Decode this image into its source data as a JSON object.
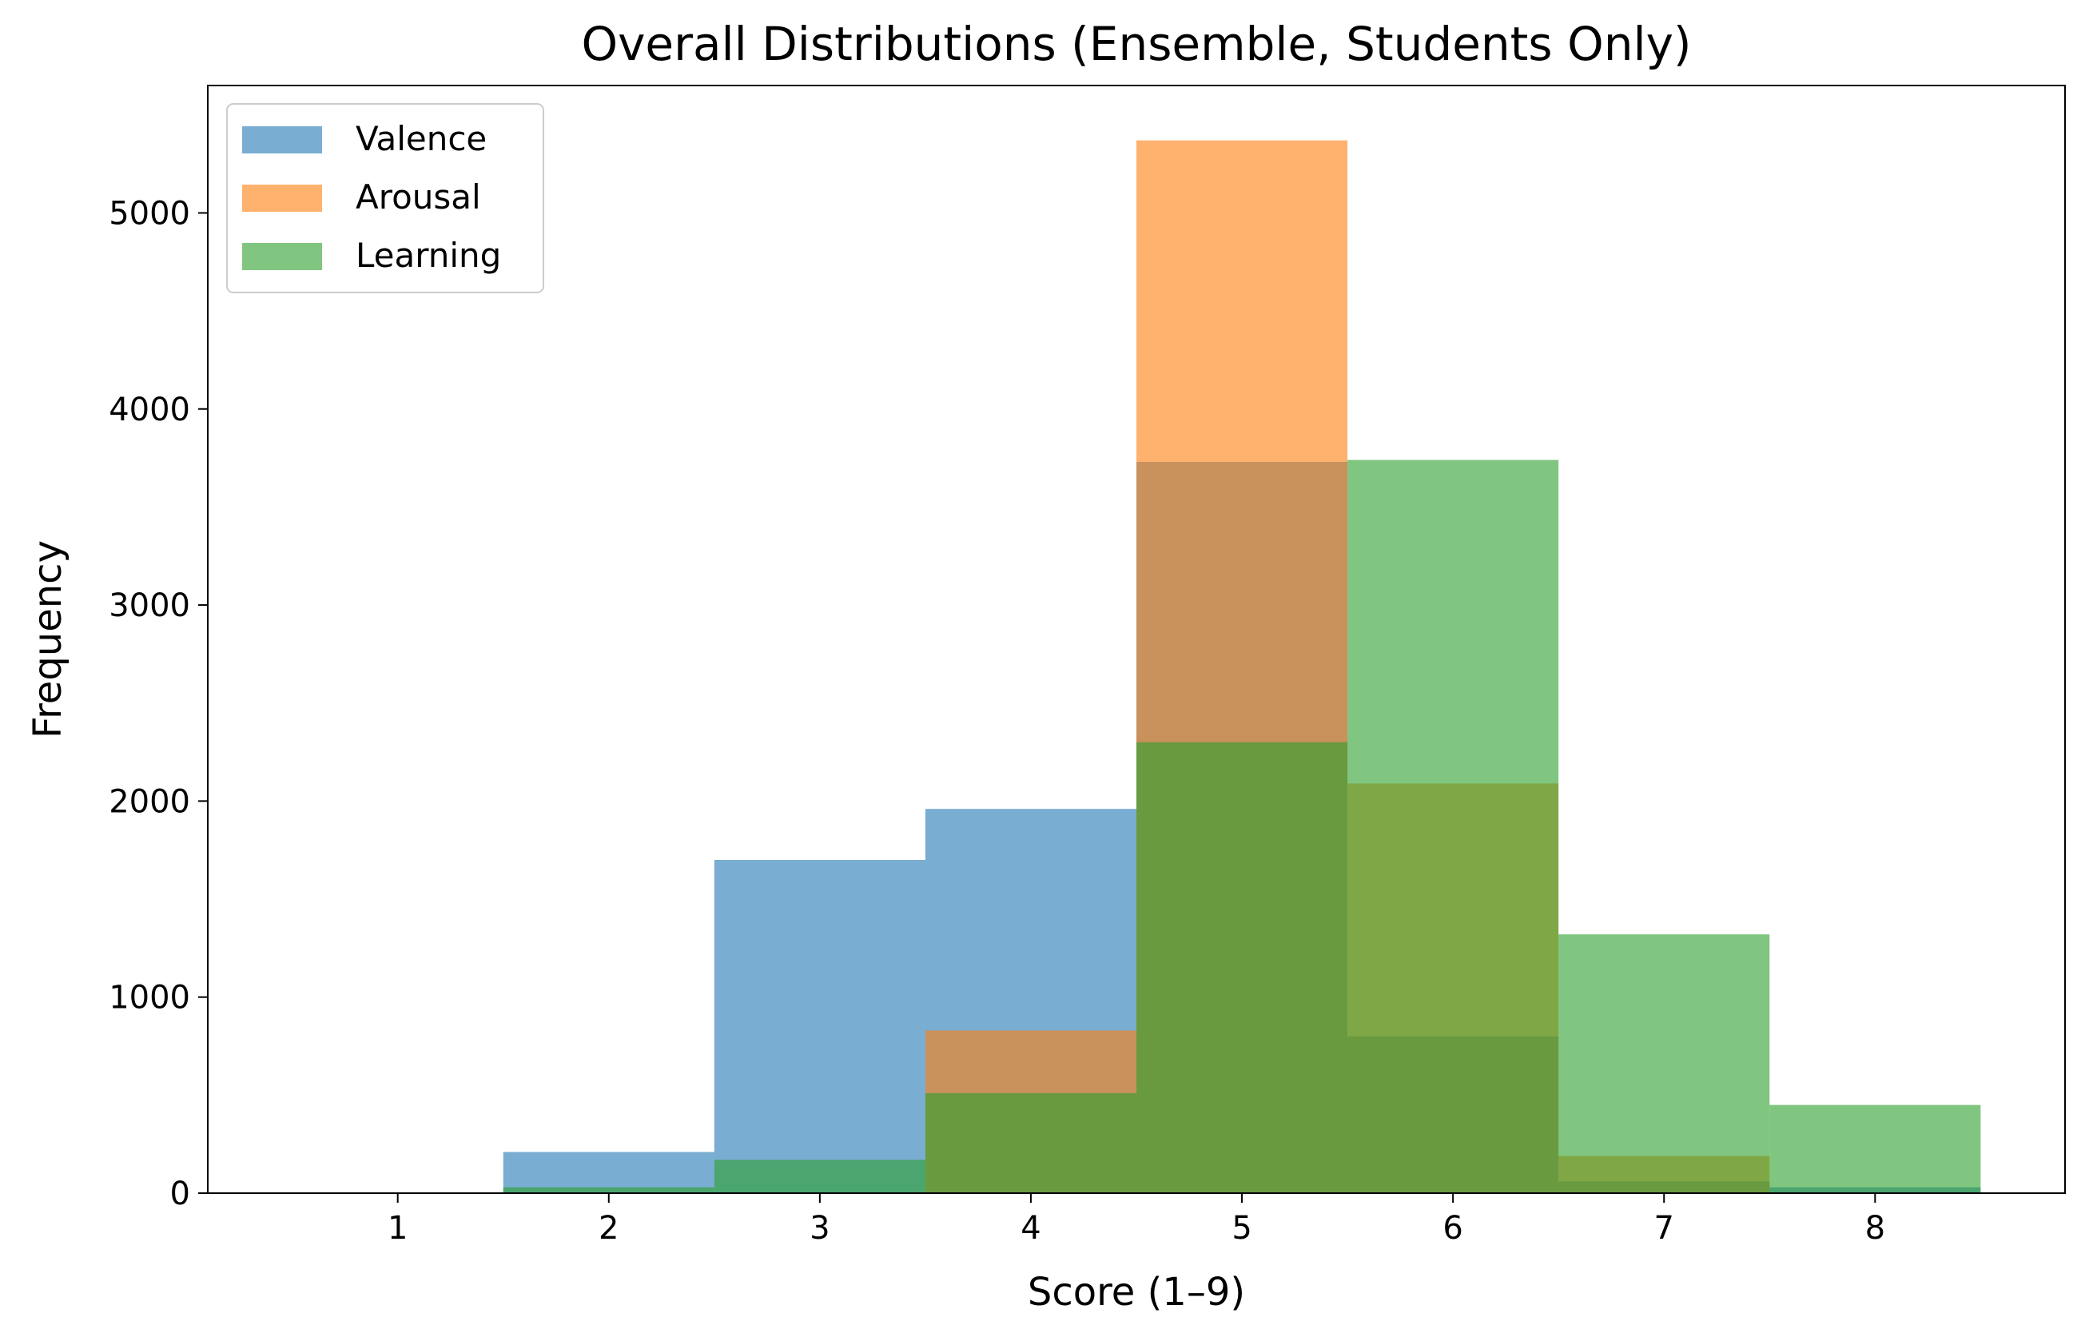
{
  "chart_data": {
    "type": "bar",
    "title": "Overall Distributions (Ensemble, Students Only)",
    "xlabel": "Score (1–9)",
    "ylabel": "Frequency",
    "xlim": [
      0.1,
      8.9
    ],
    "ylim": [
      0,
      5650
    ],
    "xticks": [
      1,
      2,
      3,
      4,
      5,
      6,
      7,
      8
    ],
    "yticks": [
      0,
      1000,
      2000,
      3000,
      4000,
      5000
    ],
    "bin_edges": [
      1.5,
      2.5,
      3.5,
      4.5,
      5.5,
      6.5,
      7.5,
      8.5
    ],
    "bin_centers": [
      2,
      3,
      4,
      5,
      6,
      7,
      8
    ],
    "grid": false,
    "legend_position": "upper left",
    "bar_alpha": 0.6,
    "series": [
      {
        "name": "Valence",
        "color": "#1f77b4",
        "values": [
          210,
          1700,
          1960,
          3730,
          800,
          60,
          30
        ]
      },
      {
        "name": "Arousal",
        "color": "#ff7f0e",
        "values": [
          0,
          0,
          830,
          5370,
          2090,
          190,
          0
        ]
      },
      {
        "name": "Learning",
        "color": "#2ca02c",
        "values": [
          30,
          170,
          510,
          2300,
          3740,
          1320,
          450
        ]
      }
    ]
  }
}
